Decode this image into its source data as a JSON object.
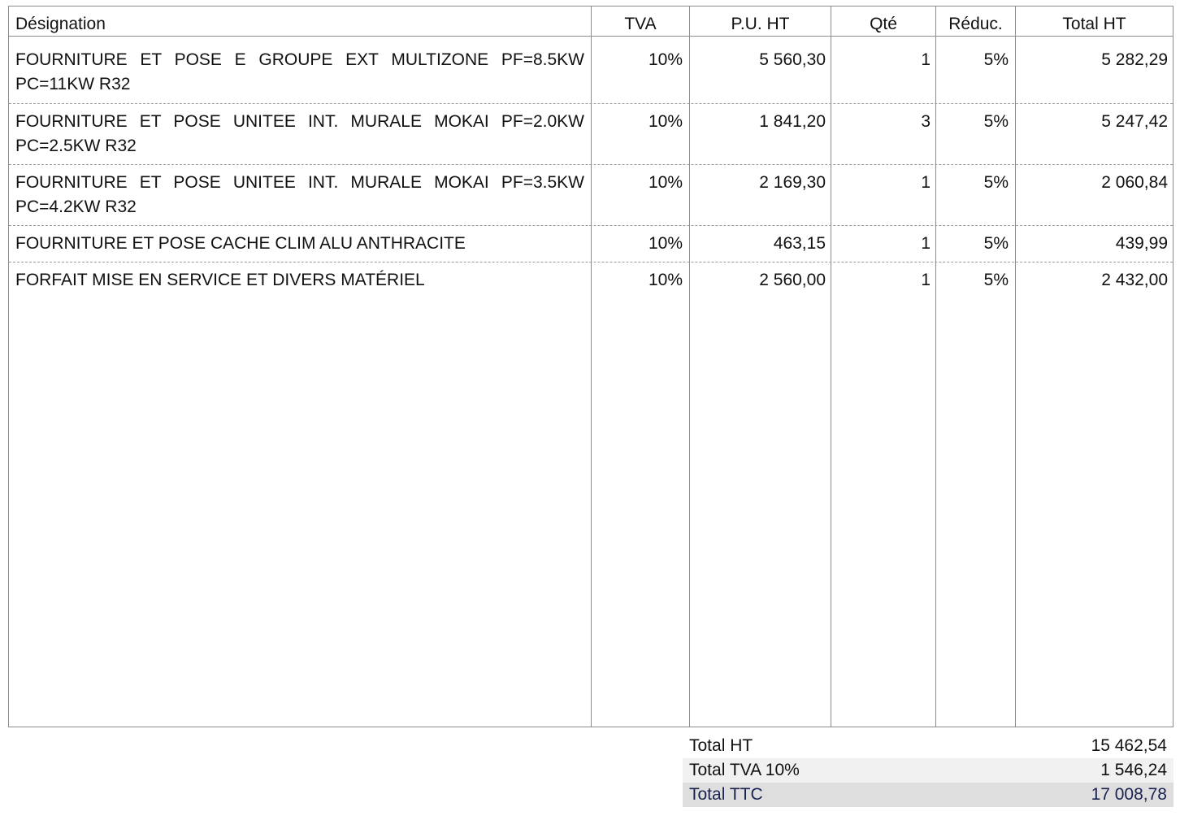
{
  "table": {
    "headers": {
      "designation": "Désignation",
      "tva": "TVA",
      "pu_ht": "P.U. HT",
      "qte": "Qté",
      "reduc": "Réduc.",
      "total_ht": "Total HT"
    },
    "rows": [
      {
        "designation": "FOURNITURE ET POSE E GROUPE EXT MULTIZONE PF=8.5KW PC=11KW R32",
        "tva": "10%",
        "pu_ht": "5 560,30",
        "qte": "1",
        "reduc": "5%",
        "total_ht": "5 282,29"
      },
      {
        "designation": "FOURNITURE ET POSE UNITEE INT. MURALE MOKAI PF=2.0KW PC=2.5KW R32",
        "tva": "10%",
        "pu_ht": "1 841,20",
        "qte": "3",
        "reduc": "5%",
        "total_ht": "5 247,42"
      },
      {
        "designation": "FOURNITURE ET POSE UNITEE INT. MURALE MOKAI PF=3.5KW PC=4.2KW R32",
        "tva": "10%",
        "pu_ht": "2 169,30",
        "qte": "1",
        "reduc": "5%",
        "total_ht": "2 060,84"
      },
      {
        "designation": "FOURNITURE ET POSE CACHE CLIM ALU ANTHRACITE",
        "tva": "10%",
        "pu_ht": "463,15",
        "qte": "1",
        "reduc": "5%",
        "total_ht": "439,99"
      },
      {
        "designation": "FORFAIT MISE EN SERVICE ET DIVERS MATÉRIEL",
        "tva": "10%",
        "pu_ht": "2 560,00",
        "qte": "1",
        "reduc": "5%",
        "total_ht": "2 432,00"
      }
    ]
  },
  "totals": {
    "total_ht_label": "Total HT",
    "total_ht_value": "15 462,54",
    "total_tva_label": "Total TVA 10%",
    "total_tva_value": "1 546,24",
    "total_ttc_label": "Total TTC",
    "total_ttc_value": "17 008,78"
  },
  "colors": {
    "border": "#8c8c8c",
    "ttc_text": "#1a2350",
    "ttc_background": "#dedede",
    "tva_background": "#f1f1f1"
  }
}
